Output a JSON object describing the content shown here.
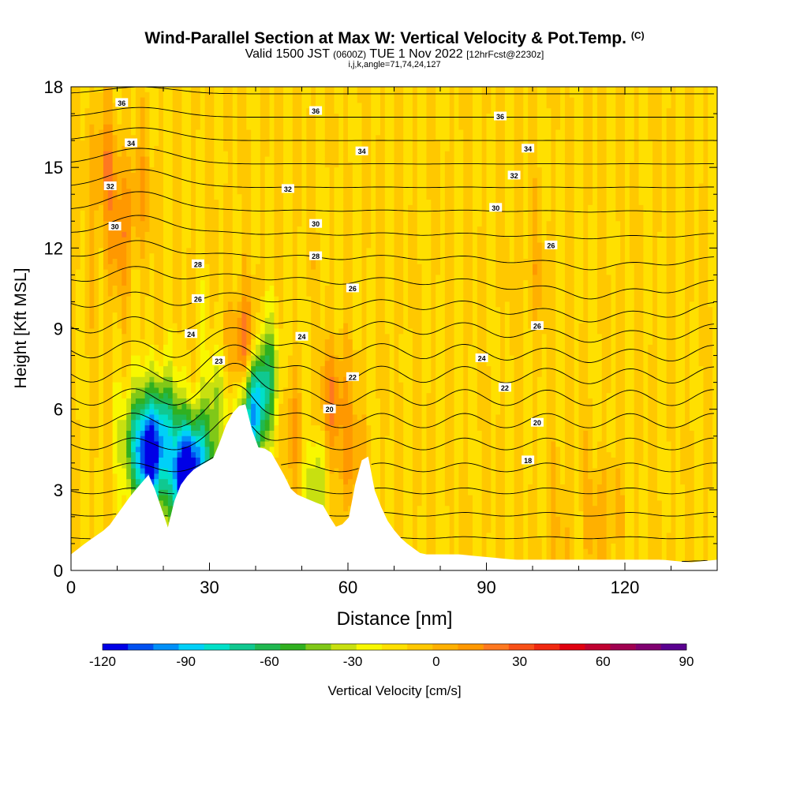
{
  "header": {
    "title": "Wind-Parallel Section at Max W: Vertical Velocity & Pot.Temp.",
    "title_mark": "(C)",
    "valid_prefix": "Valid 1500 JST",
    "valid_zulu": "(0600Z)",
    "valid_date": "TUE 1 Nov 2022",
    "forecast": "[12hrFcst@2230z]",
    "params": "i,j,k,angle=71,74,24,127"
  },
  "chart_data": {
    "type": "heatmap",
    "xlabel": "Distance [nm]",
    "ylabel": "Height [Kft MSL]",
    "xlim": [
      0,
      140
    ],
    "ylim": [
      0,
      18
    ],
    "x_ticks": [
      0,
      30,
      60,
      90,
      120
    ],
    "y_ticks": [
      0,
      3,
      6,
      9,
      12,
      15,
      18
    ],
    "grid": false,
    "colorbar": {
      "label": "Vertical Velocity [cm/s]",
      "placement": "bottom",
      "range": [
        -120,
        90
      ],
      "step": 10,
      "tick_labels": [
        -120,
        -90,
        -60,
        -30,
        0,
        30,
        60,
        90
      ],
      "colors": [
        "#0000e6",
        "#0050f0",
        "#0090f8",
        "#00d0f8",
        "#00e0c8",
        "#10c890",
        "#20b850",
        "#30b020",
        "#80c818",
        "#c8e010",
        "#f8f800",
        "#ffe000",
        "#ffc800",
        "#ffb000",
        "#ff9800",
        "#ff7820",
        "#f85018",
        "#f02810",
        "#e00010",
        "#c00030",
        "#a00050",
        "#800070",
        "#5a0090"
      ]
    },
    "background_velocity_cm_s": 0,
    "terrain_heights_kft": [
      [
        0,
        0.6
      ],
      [
        3,
        1
      ],
      [
        8,
        1.6
      ],
      [
        13,
        2.8
      ],
      [
        17,
        3.6
      ],
      [
        21,
        1.6
      ],
      [
        23,
        3
      ],
      [
        26,
        3.7
      ],
      [
        31,
        4.2
      ],
      [
        34,
        5.6
      ],
      [
        36,
        6.1
      ],
      [
        38,
        6.2
      ],
      [
        40,
        4.6
      ],
      [
        43,
        4.5
      ],
      [
        46,
        3.6
      ],
      [
        48,
        2.9
      ],
      [
        52,
        2.6
      ],
      [
        55,
        2.4
      ],
      [
        57,
        1.6
      ],
      [
        60,
        1.8
      ],
      [
        62,
        3.6
      ],
      [
        64,
        4.6
      ],
      [
        66,
        2.8
      ],
      [
        69,
        1.7
      ],
      [
        72,
        1.1
      ],
      [
        76,
        0.6
      ],
      [
        84,
        0.6
      ],
      [
        96,
        0.4
      ],
      [
        128,
        0.4
      ],
      [
        134,
        0.3
      ],
      [
        140,
        0.4
      ]
    ],
    "velocity_features": [
      {
        "x": 7,
        "y": 15,
        "value": 28
      },
      {
        "x": 10,
        "y": 12,
        "value": 22
      },
      {
        "x": 14,
        "y": 14,
        "value": 20
      },
      {
        "x": 14,
        "y": 5,
        "value": -45
      },
      {
        "x": 17,
        "y": 4,
        "value": -95
      },
      {
        "x": 20,
        "y": 5.5,
        "value": -55
      },
      {
        "x": 24.5,
        "y": 3.4,
        "value": -115
      },
      {
        "x": 28,
        "y": 4,
        "value": -65
      },
      {
        "x": 32,
        "y": 6.5,
        "value": -25
      },
      {
        "x": 37.5,
        "y": 8,
        "value": 55
      },
      {
        "x": 39.5,
        "y": 6,
        "value": -90
      },
      {
        "x": 42,
        "y": 7.5,
        "value": -40
      },
      {
        "x": 48,
        "y": 5,
        "value": 20
      },
      {
        "x": 57,
        "y": 6.5,
        "value": 30
      },
      {
        "x": 60,
        "y": 4,
        "value": 22
      },
      {
        "x": 53,
        "y": 3.2,
        "value": -28
      },
      {
        "x": 100,
        "y": 11,
        "value": 12
      },
      {
        "x": 115,
        "y": 2,
        "value": 18
      },
      {
        "x": 105,
        "y": 1.5,
        "value": 10
      }
    ],
    "isentrope_labels": [
      {
        "x": 11,
        "y": 17.4,
        "text": "36"
      },
      {
        "x": 53,
        "y": 17.1,
        "text": "36"
      },
      {
        "x": 93,
        "y": 16.9,
        "text": "36"
      },
      {
        "x": 13,
        "y": 15.9,
        "text": "34"
      },
      {
        "x": 63,
        "y": 15.6,
        "text": "34"
      },
      {
        "x": 99,
        "y": 15.7,
        "text": "34"
      },
      {
        "x": 8.5,
        "y": 14.3,
        "text": "32"
      },
      {
        "x": 47,
        "y": 14.2,
        "text": "32"
      },
      {
        "x": 96,
        "y": 14.7,
        "text": "32"
      },
      {
        "x": 9.5,
        "y": 12.8,
        "text": "30"
      },
      {
        "x": 53,
        "y": 12.9,
        "text": "30"
      },
      {
        "x": 92,
        "y": 13.5,
        "text": "30"
      },
      {
        "x": 27.5,
        "y": 11.4,
        "text": "28"
      },
      {
        "x": 53,
        "y": 11.7,
        "text": "28"
      },
      {
        "x": 104,
        "y": 12.1,
        "text": "26"
      },
      {
        "x": 27.5,
        "y": 10.1,
        "text": "26"
      },
      {
        "x": 61,
        "y": 10.5,
        "text": "26"
      },
      {
        "x": 101,
        "y": 9.1,
        "text": "26"
      },
      {
        "x": 26,
        "y": 8.8,
        "text": "24"
      },
      {
        "x": 50,
        "y": 8.7,
        "text": "24"
      },
      {
        "x": 89,
        "y": 7.9,
        "text": "24"
      },
      {
        "x": 32,
        "y": 7.8,
        "text": "23"
      },
      {
        "x": 61,
        "y": 7.2,
        "text": "22"
      },
      {
        "x": 94,
        "y": 6.8,
        "text": "22"
      },
      {
        "x": 56,
        "y": 6,
        "text": "20"
      },
      {
        "x": 101,
        "y": 5.5,
        "text": "20"
      },
      {
        "x": 99,
        "y": 4.1,
        "text": "18"
      }
    ],
    "isentrope_values": [
      36,
      35,
      34,
      33,
      32,
      31,
      30,
      29,
      28,
      27,
      26,
      25,
      24,
      23,
      22,
      21,
      20,
      19,
      18,
      17,
      16,
      15,
      14,
      13
    ]
  }
}
